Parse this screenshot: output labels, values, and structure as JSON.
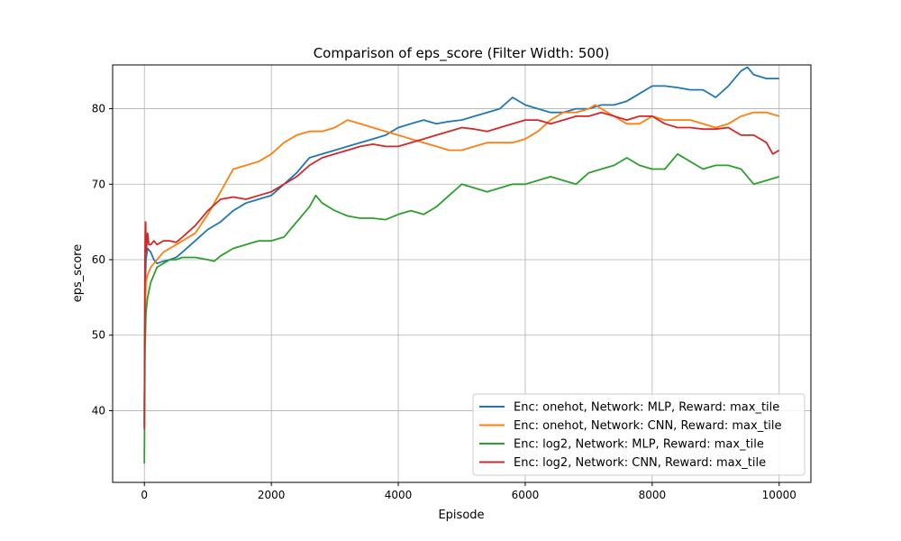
{
  "chart_data": {
    "type": "line",
    "title": "Comparison of eps_score (Filter Width: 500)",
    "xlabel": "Episode",
    "ylabel": "eps_score",
    "xlim": [
      -500,
      10500
    ],
    "ylim": [
      30.5,
      85.8
    ],
    "xticks": [
      0,
      2000,
      4000,
      6000,
      8000,
      10000
    ],
    "yticks": [
      40,
      50,
      60,
      70,
      80
    ],
    "grid": true,
    "legend_position": "lower-right",
    "series": [
      {
        "name": "Enc: onehot, Network: MLP, Reward: max_tile",
        "color": "#1f77b4",
        "x": [
          0,
          10,
          25,
          50,
          100,
          150,
          200,
          300,
          400,
          500,
          600,
          800,
          1000,
          1200,
          1400,
          1600,
          1800,
          2000,
          2200,
          2400,
          2600,
          2800,
          3000,
          3200,
          3400,
          3600,
          3800,
          4000,
          4200,
          4400,
          4600,
          4800,
          5000,
          5200,
          5400,
          5600,
          5800,
          6000,
          6200,
          6400,
          6600,
          6800,
          7000,
          7200,
          7400,
          7600,
          7800,
          8000,
          8200,
          8400,
          8600,
          8800,
          9000,
          9200,
          9400,
          9500,
          9600,
          9800,
          10000
        ],
        "y": [
          38,
          55,
          60,
          61.5,
          61,
          60,
          59.5,
          59.8,
          60,
          60.3,
          61,
          62.5,
          64,
          65,
          66.5,
          67.5,
          68,
          68.5,
          70,
          71.5,
          73.5,
          74,
          74.5,
          75,
          75.5,
          76,
          76.5,
          77.5,
          78,
          78.5,
          78,
          78.3,
          78.5,
          79,
          79.5,
          80,
          81.5,
          80.5,
          80,
          79.5,
          79.5,
          80,
          80,
          80.5,
          80.5,
          81,
          82,
          83,
          83,
          82.8,
          82.5,
          82.5,
          81.5,
          83,
          85,
          85.5,
          84.5,
          84,
          84
        ]
      },
      {
        "name": "Enc: onehot, Network: CNN, Reward: max_tile",
        "color": "#ff7f0e",
        "x": [
          0,
          10,
          25,
          50,
          100,
          150,
          200,
          300,
          400,
          500,
          600,
          800,
          1000,
          1200,
          1400,
          1600,
          1800,
          2000,
          2200,
          2400,
          2600,
          2800,
          3000,
          3200,
          3400,
          3600,
          3800,
          4000,
          4200,
          4400,
          4600,
          4800,
          5000,
          5200,
          5400,
          5600,
          5800,
          6000,
          6200,
          6400,
          6600,
          6800,
          7000,
          7100,
          7200,
          7400,
          7600,
          7800,
          8000,
          8200,
          8400,
          8600,
          8800,
          9000,
          9200,
          9400,
          9600,
          9800,
          10000
        ],
        "y": [
          40,
          52,
          57,
          58,
          59,
          59.5,
          60,
          61,
          61.5,
          62,
          62.5,
          63.5,
          66,
          69,
          72,
          72.5,
          73,
          74,
          75.5,
          76.5,
          77,
          77,
          77.5,
          78.5,
          78,
          77.5,
          77,
          76.5,
          76,
          75.5,
          75,
          74.5,
          74.5,
          75,
          75.5,
          75.5,
          75.5,
          76,
          77,
          78.5,
          79.5,
          79.5,
          80,
          80.5,
          80,
          79,
          78,
          78,
          79,
          78.5,
          78.5,
          78.5,
          78,
          77.5,
          78,
          79,
          79.5,
          79.5,
          79
        ]
      },
      {
        "name": "Enc: log2, Network: MLP, Reward: max_tile",
        "color": "#2ca02c",
        "x": [
          0,
          10,
          25,
          50,
          100,
          150,
          200,
          300,
          400,
          500,
          600,
          800,
          1000,
          1100,
          1200,
          1400,
          1600,
          1800,
          2000,
          2200,
          2400,
          2600,
          2700,
          2800,
          3000,
          3200,
          3400,
          3600,
          3800,
          4000,
          4200,
          4400,
          4600,
          4800,
          5000,
          5200,
          5400,
          5600,
          5800,
          6000,
          6200,
          6400,
          6600,
          6800,
          7000,
          7200,
          7400,
          7600,
          7800,
          8000,
          8200,
          8400,
          8600,
          8800,
          9000,
          9200,
          9400,
          9600,
          9800,
          10000
        ],
        "y": [
          33,
          48,
          53,
          55,
          57,
          58,
          59,
          59.5,
          60,
          60,
          60.3,
          60.3,
          60,
          59.8,
          60.5,
          61.5,
          62,
          62.5,
          62.5,
          63,
          65,
          67,
          68.5,
          67.5,
          66.5,
          65.8,
          65.5,
          65.5,
          65.3,
          66,
          66.5,
          66,
          67,
          68.5,
          70,
          69.5,
          69,
          69.5,
          70,
          70,
          70.5,
          71,
          70.5,
          70,
          71.5,
          72,
          72.5,
          73.5,
          72.5,
          72,
          72,
          74,
          73,
          72,
          72.5,
          72.5,
          72,
          70,
          70.5,
          71
        ]
      },
      {
        "name": "Enc: log2, Network: CNN, Reward: max_tile",
        "color": "#d62728",
        "x": [
          0,
          10,
          20,
          30,
          50,
          70,
          100,
          150,
          200,
          300,
          400,
          500,
          600,
          800,
          1000,
          1200,
          1400,
          1600,
          1800,
          2000,
          2200,
          2400,
          2600,
          2800,
          3000,
          3200,
          3400,
          3600,
          3800,
          4000,
          4200,
          4400,
          4600,
          4800,
          5000,
          5200,
          5400,
          5600,
          5800,
          6000,
          6200,
          6400,
          6600,
          6800,
          7000,
          7200,
          7400,
          7600,
          7800,
          8000,
          8200,
          8400,
          8600,
          8800,
          9000,
          9200,
          9400,
          9600,
          9800,
          9900,
          10000
        ],
        "y": [
          37.5,
          60,
          65,
          61,
          63.5,
          62,
          62,
          62.5,
          62,
          62.5,
          62.5,
          62.3,
          63,
          64.5,
          66.5,
          68,
          68.3,
          68,
          68.5,
          69,
          70,
          71,
          72.5,
          73.5,
          74,
          74.5,
          75,
          75.3,
          75,
          75,
          75.5,
          76,
          76.5,
          77,
          77.5,
          77.3,
          77,
          77.5,
          78,
          78.5,
          78.5,
          78,
          78.5,
          79,
          79,
          79.5,
          79,
          78.5,
          79,
          79,
          78,
          77.5,
          77.5,
          77.3,
          77.3,
          77.5,
          76.5,
          76.5,
          75.5,
          74,
          74.5
        ]
      }
    ]
  }
}
